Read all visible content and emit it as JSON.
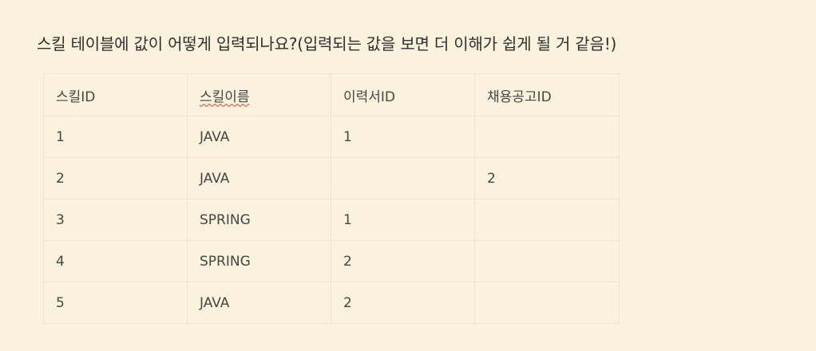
{
  "question": "스킬 테이블에 값이 어떻게 입력되나요?(입력되는 값을 보면 더 이해가 쉽게 될 거 같음!)",
  "table": {
    "headers": [
      "스킬ID",
      "스킬이름",
      "이력서ID",
      "채용공고ID"
    ],
    "rows": [
      [
        "1",
        "JAVA",
        "1",
        ""
      ],
      [
        "2",
        "JAVA",
        "",
        "2"
      ],
      [
        "3",
        "SPRING",
        "1",
        ""
      ],
      [
        "4",
        "SPRING",
        "2",
        ""
      ],
      [
        "5",
        "JAVA",
        "2",
        ""
      ]
    ]
  },
  "colors": {
    "background": "#fbf2dd",
    "border": "#efe4d0",
    "spellcheck_underline": "#e03b3b"
  }
}
